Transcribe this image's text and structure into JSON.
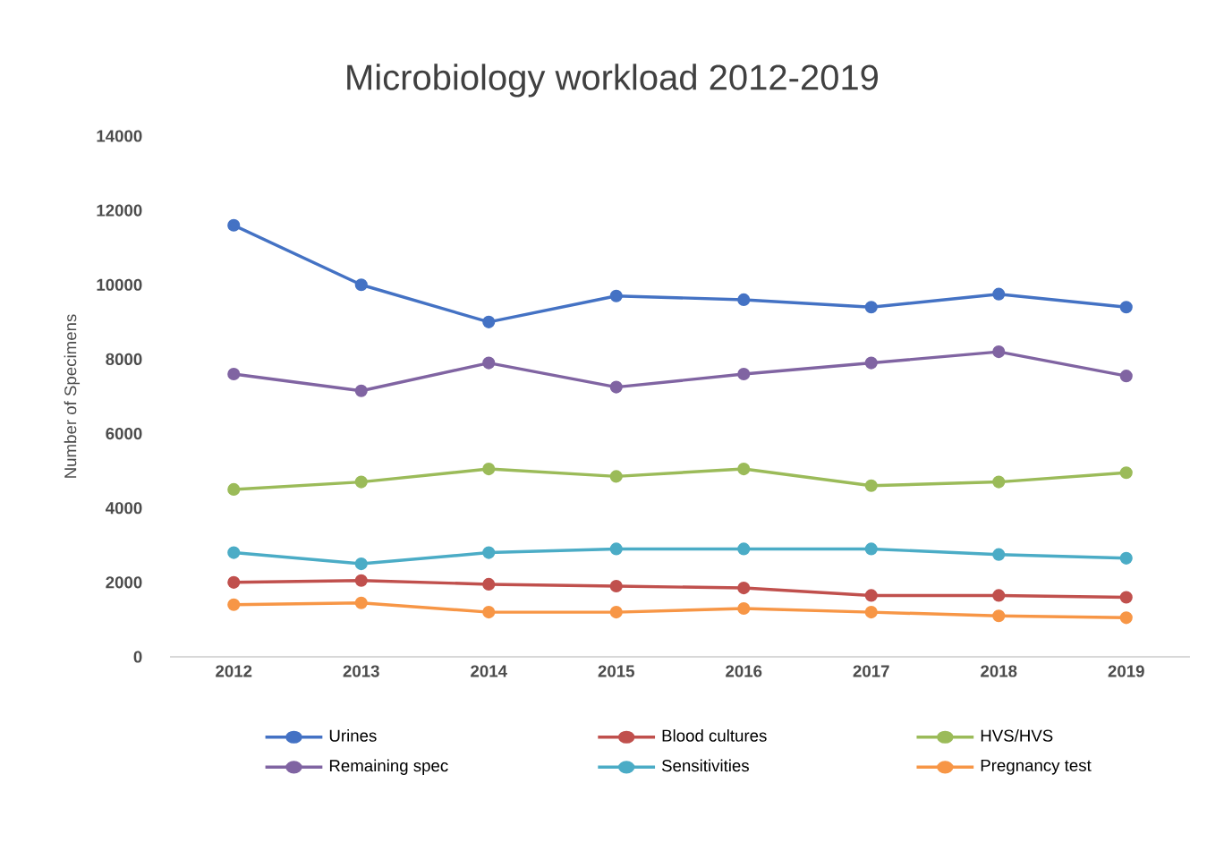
{
  "chart_data": {
    "type": "line",
    "title": "Microbiology workload 2012-2019",
    "ylabel": "Number of Specimens",
    "categories": [
      "2012",
      "2013",
      "2014",
      "2015",
      "2016",
      "2017",
      "2018",
      "2019"
    ],
    "ylim": [
      0,
      14000
    ],
    "yticks": [
      0,
      2000,
      4000,
      6000,
      8000,
      10000,
      12000,
      14000
    ],
    "marker": "circle",
    "legend": "bottom",
    "series": [
      {
        "name": "Urines",
        "color": "#4472c4",
        "values": [
          11600,
          10000,
          9000,
          9700,
          9600,
          9400,
          9750,
          9400
        ]
      },
      {
        "name": "Blood cultures",
        "color": "#c0504d",
        "values": [
          2000,
          2050,
          1950,
          1900,
          1850,
          1650,
          1650,
          1600
        ]
      },
      {
        "name": "HVS/HVS",
        "color": "#9bbb59",
        "values": [
          4500,
          4700,
          5050,
          4850,
          5050,
          4600,
          4700,
          4950
        ]
      },
      {
        "name": "Remaining spec",
        "color": "#8064a2",
        "values": [
          7600,
          7150,
          7900,
          7250,
          7600,
          7900,
          8200,
          7550
        ]
      },
      {
        "name": "Sensitivities",
        "color": "#4bacc6",
        "values": [
          2800,
          2500,
          2800,
          2900,
          2900,
          2900,
          2750,
          2650
        ]
      },
      {
        "name": "Pregnancy test",
        "color": "#f79646",
        "values": [
          1400,
          1450,
          1200,
          1200,
          1300,
          1200,
          1100,
          1050
        ]
      }
    ]
  }
}
